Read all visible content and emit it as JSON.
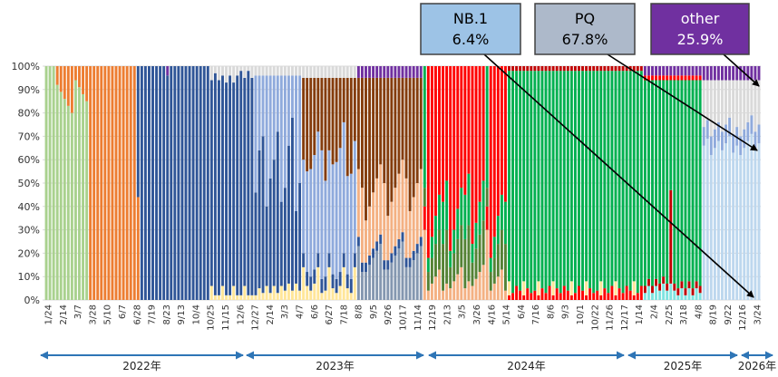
{
  "chart_data": {
    "type": "bar",
    "stacked": true,
    "percent": true,
    "ylim": [
      0,
      100
    ],
    "yticks": [
      "0%",
      "10%",
      "20%",
      "30%",
      "40%",
      "50%",
      "60%",
      "70%",
      "80%",
      "90%",
      "100%"
    ],
    "grid": true,
    "xtick_labels": [
      "1/24",
      "2/14",
      "3/7",
      "3/28",
      "5/10",
      "6/7",
      "6/28",
      "7/19",
      "8/23",
      "9/13",
      "10/4",
      "10/25",
      "11/15",
      "12/6",
      "12/27",
      "2/14",
      "3/3",
      "4/7",
      "6/6",
      "6/27",
      "7/18",
      "8/8",
      "9/5",
      "9/26",
      "10/17",
      "11/14",
      "12/19",
      "2/13",
      "3/5",
      "3/26",
      "4/16",
      "5/14",
      "6/4",
      "7/16",
      "8/6",
      "9/3",
      "10/1",
      "10/22",
      "11/26",
      "12/17",
      "1/14",
      "2/4",
      "2/25",
      "3/18",
      "4/8",
      "8/19",
      "9/22",
      "12/16",
      "3/24"
    ],
    "year_labels": [
      "2022年",
      "2023年",
      "2024年",
      "2025年",
      "2026年"
    ],
    "colors": {
      "light_green": "#a9d18e",
      "orange": "#ed7d31",
      "navy": "#2f5597",
      "light_gray": "#d9d9d9",
      "purple": "#7030a0",
      "yellow": "#ffe699",
      "steel_blue": "#8faadc",
      "brown": "#843c0c",
      "tan": "#f4b183",
      "slate": "#8497b0",
      "red": "#ff0000",
      "dark_green": "#548235",
      "green": "#00b050",
      "dark_red": "#c00000",
      "cyan": "#7fe3e0",
      "pale_blue": "#bdd7ee"
    },
    "annotations": [
      {
        "name": "NB.1",
        "value": "6.4%",
        "box_color": "#9dc3e6",
        "text_color": "#000000"
      },
      {
        "name": "PQ",
        "value": "67.8%",
        "box_color": "#adb9ca",
        "text_color": "#000000"
      },
      {
        "name": "other",
        "value": "25.9%",
        "box_color": "#7030a0",
        "text_color": "#ffffff"
      }
    ]
  }
}
